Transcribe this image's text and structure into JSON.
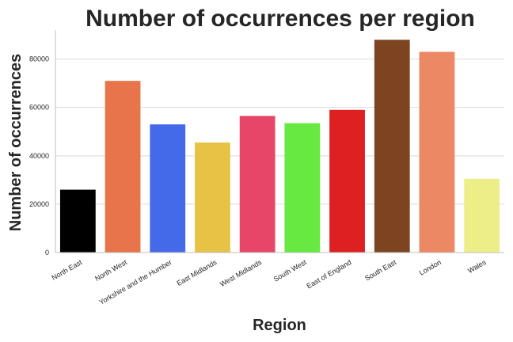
{
  "chart_data": {
    "type": "bar",
    "title": "Number of occurrences per region",
    "xlabel": "Region",
    "ylabel": "Number of occurrences",
    "categories": [
      "North East",
      "North West",
      "Yorkshire and the Humber",
      "East Midlands",
      "West Midlands",
      "South West",
      "East of England",
      "South East",
      "London",
      "Wales"
    ],
    "values": [
      26000,
      71000,
      53000,
      45500,
      56500,
      53500,
      59000,
      88000,
      83000,
      30500
    ],
    "colors": [
      "#000000",
      "#e8744a",
      "#4469e9",
      "#e8c245",
      "#e74669",
      "#67e942",
      "#df2020",
      "#7c4420",
      "#ec8863",
      "#eeee88"
    ],
    "ylim": [
      0,
      92000
    ],
    "yticks": [
      0,
      20000,
      40000,
      60000,
      80000
    ],
    "grid": true,
    "legend": "none"
  }
}
